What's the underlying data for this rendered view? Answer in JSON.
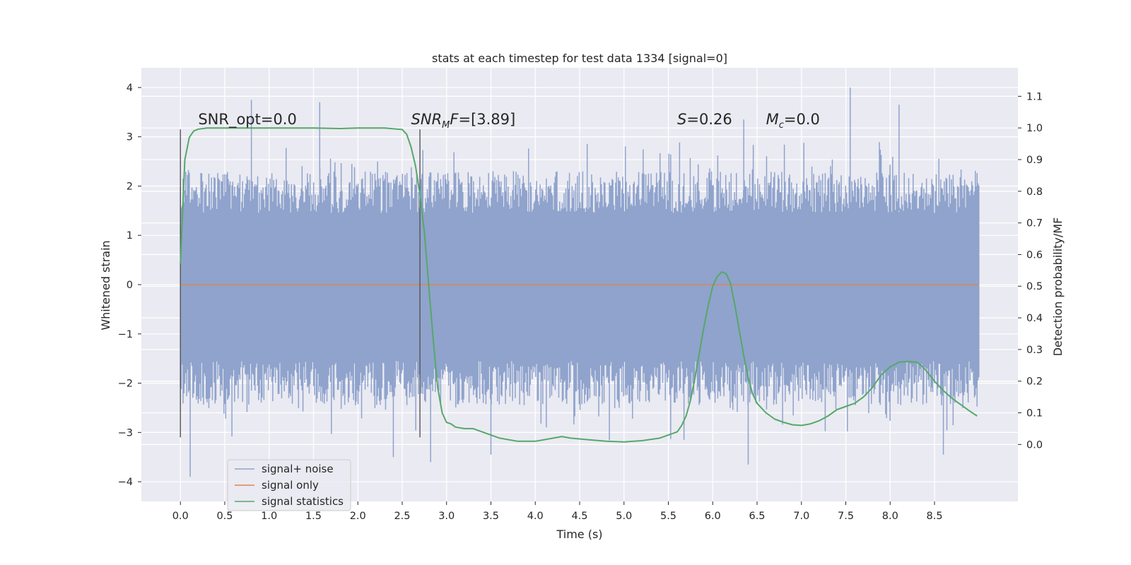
{
  "chart_data": {
    "type": "line",
    "title": "stats at each timestep for test data 1334 [signal=0]",
    "xlabel": "Time (s)",
    "ylabel": "Whitened strain",
    "y2label": "Detection probability/MF",
    "xlim": [
      -0.44,
      9.44
    ],
    "ylim": [
      -4.4,
      4.4
    ],
    "y2lim": [
      -0.18,
      1.19
    ],
    "x_ticks": [
      0.0,
      0.5,
      1.0,
      1.5,
      2.0,
      2.5,
      3.0,
      3.5,
      4.0,
      4.5,
      5.0,
      5.5,
      6.0,
      6.5,
      7.0,
      7.5,
      8.0,
      8.5
    ],
    "x_tick_labels": [
      "0.0",
      "0.5",
      "1.0",
      "1.5",
      "2.0",
      "2.5",
      "3.0",
      "3.5",
      "4.0",
      "4.5",
      "5.0",
      "5.5",
      "6.0",
      "6.5",
      "7.0",
      "7.5",
      "8.0",
      "8.5"
    ],
    "y_ticks": [
      -4,
      -3,
      -2,
      -1,
      0,
      1,
      2,
      3,
      4
    ],
    "y_tick_labels": [
      "−4",
      "−3",
      "−2",
      "−1",
      "0",
      "1",
      "2",
      "3",
      "4"
    ],
    "y2_ticks": [
      0.0,
      0.1,
      0.2,
      0.3,
      0.4,
      0.5,
      0.6,
      0.7,
      0.8,
      0.9,
      1.0,
      1.1
    ],
    "y2_tick_labels": [
      "0.0",
      "0.1",
      "0.2",
      "0.3",
      "0.4",
      "0.5",
      "0.6",
      "0.7",
      "0.8",
      "0.9",
      "1.0",
      "1.1"
    ],
    "grid": true,
    "legend_position": "lower-left",
    "background_color": "#eaeaf2",
    "series": [
      {
        "name": "signal+ noise",
        "axis": "left",
        "color": "#8fa3cc",
        "style": "dense noise trace, approx. x 0.0–9.0 s, mostly within ±2.5, extremes −3.9 to 4.0",
        "x_range": [
          0.0,
          9.0
        ],
        "peaks": [
          [
            0.8,
            3.75
          ],
          [
            1.57,
            3.7
          ],
          [
            7.55,
            4.0
          ],
          [
            8.1,
            3.65
          ],
          [
            6.35,
            3.35
          ]
        ],
        "troughs": [
          [
            0.11,
            -3.9
          ],
          [
            2.4,
            -3.5
          ],
          [
            2.82,
            -3.6
          ],
          [
            3.5,
            -3.45
          ],
          [
            6.4,
            -3.65
          ],
          [
            8.6,
            -3.45
          ]
        ]
      },
      {
        "name": "signal only",
        "axis": "left",
        "color": "#dd8452",
        "x": [
          0.0,
          9.0
        ],
        "y": [
          0.0,
          0.0
        ]
      },
      {
        "name": "signal statistics",
        "axis": "right",
        "color": "#55a868",
        "x": [
          0.0,
          0.05,
          0.1,
          0.15,
          0.2,
          0.3,
          0.5,
          1.0,
          1.5,
          1.8,
          2.0,
          2.3,
          2.5,
          2.55,
          2.6,
          2.65,
          2.7,
          2.75,
          2.8,
          2.85,
          2.9,
          2.95,
          3.0,
          3.05,
          3.1,
          3.2,
          3.3,
          3.4,
          3.5,
          3.6,
          3.8,
          4.0,
          4.2,
          4.3,
          4.4,
          4.6,
          4.8,
          5.0,
          5.2,
          5.4,
          5.5,
          5.6,
          5.65,
          5.7,
          5.75,
          5.8,
          5.85,
          5.9,
          5.95,
          6.0,
          6.05,
          6.1,
          6.15,
          6.2,
          6.25,
          6.3,
          6.35,
          6.4,
          6.45,
          6.5,
          6.6,
          6.7,
          6.8,
          6.9,
          7.0,
          7.1,
          7.2,
          7.3,
          7.4,
          7.5,
          7.6,
          7.7,
          7.8,
          7.9,
          8.0,
          8.1,
          8.2,
          8.3,
          8.35,
          8.4,
          8.5,
          8.6,
          8.7,
          8.8,
          8.9,
          8.98
        ],
        "y": [
          0.57,
          0.9,
          0.97,
          0.99,
          0.996,
          1.0,
          1.0,
          1.0,
          1.0,
          0.998,
          1.0,
          1.0,
          0.995,
          0.98,
          0.94,
          0.88,
          0.79,
          0.67,
          0.5,
          0.33,
          0.18,
          0.1,
          0.07,
          0.065,
          0.055,
          0.05,
          0.05,
          0.04,
          0.03,
          0.02,
          0.01,
          0.01,
          0.02,
          0.025,
          0.02,
          0.015,
          0.01,
          0.008,
          0.012,
          0.02,
          0.03,
          0.04,
          0.06,
          0.09,
          0.14,
          0.21,
          0.29,
          0.37,
          0.44,
          0.5,
          0.53,
          0.545,
          0.54,
          0.51,
          0.44,
          0.36,
          0.28,
          0.21,
          0.16,
          0.13,
          0.1,
          0.08,
          0.07,
          0.062,
          0.06,
          0.065,
          0.075,
          0.09,
          0.11,
          0.12,
          0.13,
          0.15,
          0.18,
          0.22,
          0.245,
          0.26,
          0.262,
          0.26,
          0.25,
          0.235,
          0.2,
          0.17,
          0.145,
          0.125,
          0.105,
          0.09
        ]
      }
    ],
    "vlines": [
      {
        "x": 0.0,
        "y_range": [
          -3.1,
          3.15
        ]
      },
      {
        "x": 2.7,
        "y_range": [
          -3.1,
          3.15
        ]
      }
    ],
    "annotations": [
      {
        "x": 0.2,
        "y": 3.25,
        "html": "SNR_opt=0.0"
      },
      {
        "x": 2.6,
        "y": 3.25,
        "html": "<tspan font-style=\"italic\">SNR</tspan><tspan font-style=\"italic\" font-size=\"13\" dy=\"5\">M</tspan><tspan font-style=\"italic\" dy=\"-5\">F</tspan>=[3.89]"
      },
      {
        "x": 5.6,
        "y": 3.25,
        "html": "<tspan font-style=\"italic\">S</tspan>=0.26"
      },
      {
        "x": 6.6,
        "y": 3.25,
        "html": "<tspan font-style=\"italic\">M</tspan><tspan font-style=\"italic\" font-size=\"13\" dy=\"5\">c</tspan><tspan dy=\"-5\">=0.0</tspan>"
      }
    ],
    "annotation_texts": [
      "SNR_opt=0.0",
      "SNRMF=[3.89]",
      "S=0.26",
      "Mc=0.0"
    ],
    "legend": [
      {
        "label": "signal+ noise",
        "color": "#8fa3cc"
      },
      {
        "label": "signal only",
        "color": "#dd8452"
      },
      {
        "label": "signal statistics",
        "color": "#55a868"
      }
    ]
  }
}
